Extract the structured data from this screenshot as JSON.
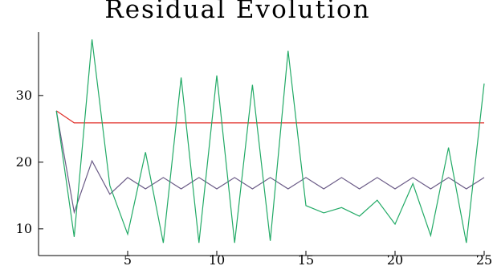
{
  "chart_data": {
    "type": "line",
    "title": "Residual Evolution",
    "xlabel": "",
    "ylabel": "",
    "xlim": [
      0,
      25
    ],
    "ylim": [
      6,
      39.5
    ],
    "xticks": [
      5,
      10,
      15,
      20,
      25
    ],
    "yticks": [
      10,
      20,
      30
    ],
    "xtick_labels": [
      "5",
      "10",
      "15",
      "20",
      "25"
    ],
    "ytick_labels": [
      "10",
      "20",
      "30"
    ],
    "grid": false,
    "legend": false,
    "x": [
      1,
      2,
      3,
      4,
      5,
      6,
      7,
      8,
      9,
      10,
      11,
      12,
      13,
      14,
      15,
      16,
      17,
      18,
      19,
      20,
      21,
      22,
      23,
      24,
      25
    ],
    "series": [
      {
        "color": "#e0302a",
        "values": [
          27.7,
          25.9,
          25.9,
          25.9,
          25.9,
          25.9,
          25.9,
          25.9,
          25.9,
          25.9,
          25.9,
          25.9,
          25.9,
          25.9,
          25.9,
          25.9,
          25.9,
          25.9,
          25.9,
          25.9,
          25.9,
          25.9,
          25.9,
          25.9,
          25.9
        ]
      },
      {
        "color": "#6a5a86",
        "values": [
          27.7,
          12.5,
          20.2,
          15.2,
          17.7,
          16.0,
          17.7,
          16.0,
          17.7,
          16.0,
          17.7,
          16.0,
          17.7,
          16.0,
          17.7,
          16.0,
          17.7,
          16.0,
          17.7,
          16.0,
          17.7,
          16.0,
          17.7,
          16.0,
          17.7
        ]
      },
      {
        "color": "#22aa66",
        "values": [
          27.7,
          8.8,
          38.4,
          16.5,
          9.2,
          21.5,
          7.9,
          32.7,
          7.9,
          33.0,
          7.9,
          31.6,
          8.2,
          36.7,
          13.5,
          12.4,
          13.2,
          11.9,
          14.3,
          10.7,
          16.8,
          9.0,
          22.2,
          7.9,
          31.8
        ]
      }
    ]
  }
}
